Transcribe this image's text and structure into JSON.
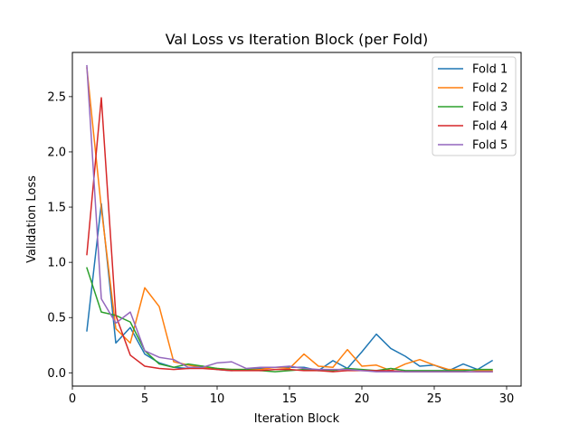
{
  "chart_data": {
    "type": "line",
    "title": "Val Loss vs Iteration Block (per Fold)",
    "xlabel": "Iteration Block",
    "ylabel": "Validation Loss",
    "xlim": [
      0,
      31
    ],
    "ylim": [
      -0.12,
      2.9
    ],
    "xticks": [
      0,
      5,
      10,
      15,
      20,
      25,
      30
    ],
    "yticks": [
      0.0,
      0.5,
      1.0,
      1.5,
      2.0,
      2.5
    ],
    "xtick_labels": [
      "0",
      "5",
      "10",
      "15",
      "20",
      "25",
      "30"
    ],
    "ytick_labels": [
      "0.0",
      "0.5",
      "1.0",
      "1.5",
      "2.0",
      "2.5"
    ],
    "grid": false,
    "legend_position": "top-right",
    "x": [
      1,
      2,
      3,
      4,
      5,
      6,
      7,
      8,
      9,
      10,
      11,
      12,
      13,
      14,
      15,
      16,
      17,
      18,
      19,
      20,
      21,
      22,
      23,
      24,
      25,
      26,
      27,
      28,
      29
    ],
    "series": [
      {
        "name": "Fold 1",
        "color": "#1f77b4",
        "values": [
          0.38,
          1.53,
          0.27,
          0.41,
          0.17,
          0.09,
          0.05,
          0.04,
          0.06,
          0.03,
          0.02,
          0.03,
          0.04,
          0.05,
          0.05,
          0.05,
          0.02,
          0.11,
          0.04,
          0.19,
          0.35,
          0.22,
          0.15,
          0.06,
          0.07,
          0.02,
          0.08,
          0.03,
          0.11
        ]
      },
      {
        "name": "Fold 2",
        "color": "#ff7f0e",
        "values": [
          2.76,
          1.49,
          0.4,
          0.27,
          0.77,
          0.6,
          0.1,
          0.07,
          0.05,
          0.04,
          0.03,
          0.03,
          0.03,
          0.05,
          0.04,
          0.17,
          0.06,
          0.05,
          0.21,
          0.06,
          0.07,
          0.02,
          0.08,
          0.12,
          0.07,
          0.03,
          0.03,
          0.02,
          0.02
        ]
      },
      {
        "name": "Fold 3",
        "color": "#2ca02c",
        "values": [
          0.95,
          0.55,
          0.52,
          0.46,
          0.2,
          0.08,
          0.05,
          0.08,
          0.06,
          0.04,
          0.03,
          0.03,
          0.02,
          0.01,
          0.02,
          0.03,
          0.02,
          0.02,
          0.04,
          0.03,
          0.02,
          0.04,
          0.02,
          0.02,
          0.02,
          0.02,
          0.02,
          0.03,
          0.03
        ]
      },
      {
        "name": "Fold 4",
        "color": "#d62728",
        "values": [
          1.07,
          2.49,
          0.52,
          0.16,
          0.06,
          0.04,
          0.03,
          0.04,
          0.04,
          0.03,
          0.02,
          0.02,
          0.02,
          0.03,
          0.03,
          0.02,
          0.02,
          0.01,
          0.02,
          0.02,
          0.02,
          0.02,
          0.01,
          0.01,
          0.01,
          0.01,
          0.01,
          0.01,
          0.01
        ]
      },
      {
        "name": "Fold 5",
        "color": "#9467bd",
        "values": [
          2.78,
          0.67,
          0.45,
          0.55,
          0.2,
          0.14,
          0.12,
          0.05,
          0.05,
          0.09,
          0.1,
          0.04,
          0.05,
          0.05,
          0.06,
          0.04,
          0.03,
          0.03,
          0.03,
          0.02,
          0.01,
          0.01,
          0.01,
          0.01,
          0.01,
          0.01,
          0.01,
          0.01,
          0.01
        ]
      }
    ]
  }
}
